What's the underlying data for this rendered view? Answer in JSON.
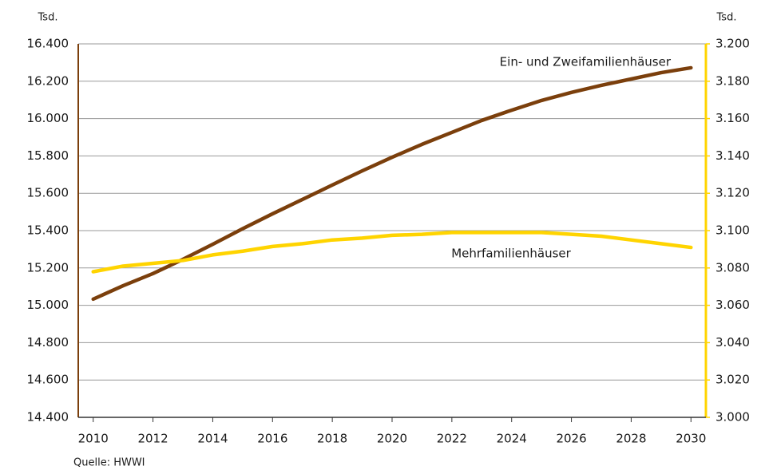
{
  "chart_data": {
    "type": "line",
    "ylabel": "Tsd.",
    "y2label": "Tsd.",
    "source": "Quelle: HWWI",
    "x": [
      2010,
      2011,
      2012,
      2013,
      2014,
      2015,
      2016,
      2017,
      2018,
      2019,
      2020,
      2021,
      2022,
      2023,
      2024,
      2025,
      2026,
      2027,
      2028,
      2029,
      2030
    ],
    "xlim": [
      2009.5,
      2030.5
    ],
    "xticks": [
      2010,
      2012,
      2014,
      2016,
      2018,
      2020,
      2022,
      2024,
      2026,
      2028,
      2030
    ],
    "ylim": [
      14400,
      16400
    ],
    "yticks": [
      {
        "value": 14400,
        "label": "14.400"
      },
      {
        "value": 14600,
        "label": "14.600"
      },
      {
        "value": 14800,
        "label": "14.800"
      },
      {
        "value": 15000,
        "label": "15.000"
      },
      {
        "value": 15200,
        "label": "15.200"
      },
      {
        "value": 15400,
        "label": "15.400"
      },
      {
        "value": 15600,
        "label": "15.600"
      },
      {
        "value": 15800,
        "label": "15.800"
      },
      {
        "value": 16000,
        "label": "16.000"
      },
      {
        "value": 16200,
        "label": "16.200"
      },
      {
        "value": 16400,
        "label": "16.400"
      }
    ],
    "y2lim": [
      3000,
      3200
    ],
    "y2ticks": [
      {
        "value": 3000,
        "label": "3.000"
      },
      {
        "value": 3020,
        "label": "3.020"
      },
      {
        "value": 3040,
        "label": "3.040"
      },
      {
        "value": 3060,
        "label": "3.060"
      },
      {
        "value": 3080,
        "label": "3.080"
      },
      {
        "value": 3100,
        "label": "3.100"
      },
      {
        "value": 3120,
        "label": "3.120"
      },
      {
        "value": 3140,
        "label": "3.140"
      },
      {
        "value": 3160,
        "label": "3.160"
      },
      {
        "value": 3180,
        "label": "3.180"
      },
      {
        "value": 3200,
        "label": "3.200"
      }
    ],
    "grid": true,
    "series": [
      {
        "name": "Ein- und Zweifamilienhäuser",
        "color": "#7b3f0c",
        "values": [
          15033,
          15105,
          15170,
          15246,
          15327,
          15410,
          15490,
          15567,
          15644,
          15720,
          15793,
          15862,
          15926,
          15990,
          16045,
          16097,
          16140,
          16178,
          16212,
          16246,
          16272
        ]
      },
      {
        "name": "Mehrfamilienhäuser",
        "color": "#ffd400",
        "axis": "y2",
        "values": [
          3078,
          3081,
          3082.5,
          3084,
          3087,
          3089,
          3091.5,
          3093,
          3095,
          3096,
          3097.5,
          3098,
          3099,
          3099,
          3099,
          3099,
          3098,
          3097,
          3095,
          3093,
          3091
        ]
      }
    ]
  }
}
